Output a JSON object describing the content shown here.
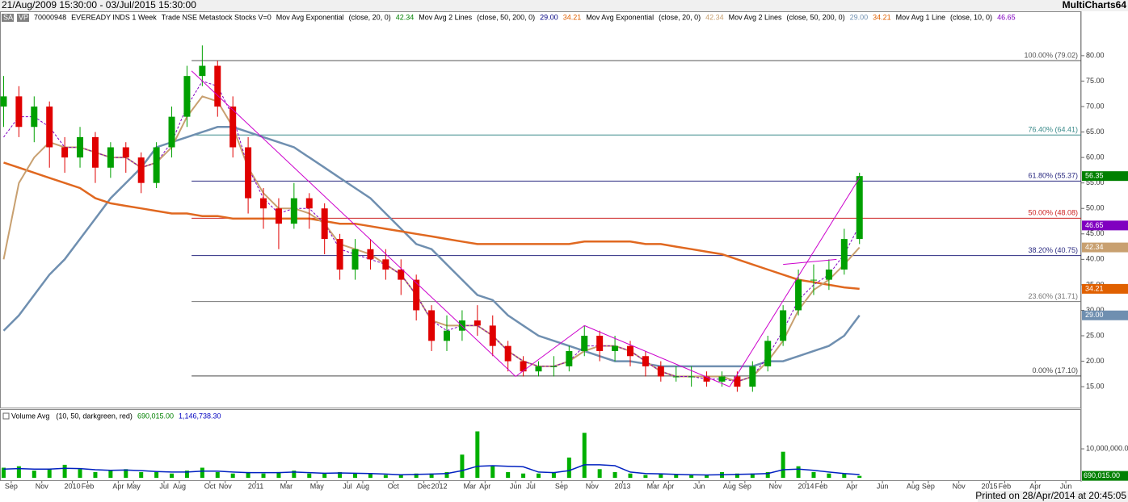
{
  "header": {
    "range": "21/Aug/2009 15:30:00 - 03/Jul/2015 15:30:00",
    "app": "MultiCharts64"
  },
  "status_line": [
    {
      "text": "SA",
      "color": "#ffffff"
    },
    {
      "text": "VP",
      "color": "#ffffff"
    },
    {
      "text": "70000948",
      "color": "#000000"
    },
    {
      "text": "EVEREADY INDS 1 Week",
      "color": "#000000"
    },
    {
      "text": "Trade NSE Metastock Stocks V=0",
      "color": "#000000"
    },
    {
      "text": "Mov Avg Exponential",
      "color": "#000000"
    },
    {
      "text": "(close, 20, 0)",
      "color": "#000000"
    },
    {
      "text": "42.34",
      "color": "#008000"
    },
    {
      "text": "Mov Avg 2 Lines",
      "color": "#000000"
    },
    {
      "text": "(close, 50, 200, 0)",
      "color": "#000000"
    },
    {
      "text": "29.00",
      "color": "#000080"
    },
    {
      "text": "34.21",
      "color": "#e06000"
    },
    {
      "text": "Mov Avg Exponential",
      "color": "#000000"
    },
    {
      "text": "(close, 20, 0)",
      "color": "#000000"
    },
    {
      "text": "42.34",
      "color": "#c8a070"
    },
    {
      "text": "Mov Avg 2 Lines",
      "color": "#000000"
    },
    {
      "text": "(close, 50, 200, 0)",
      "color": "#000000"
    },
    {
      "text": "29.00",
      "color": "#6f8fb0"
    },
    {
      "text": "34.21",
      "color": "#e06000"
    },
    {
      "text": "Mov Avg 1 Line",
      "color": "#000000"
    },
    {
      "text": "(close, 10, 0)",
      "color": "#000000"
    },
    {
      "text": "46.65",
      "color": "#8000c0"
    }
  ],
  "chart_data": [
    {
      "type": "candlestick",
      "up_color": "#00a000",
      "down_color": "#e00000",
      "x": [
        0.5,
        1.5,
        2.5,
        3.5,
        4.5,
        5.5,
        6.5,
        7.5,
        8.5,
        9.5,
        10.5,
        11.5,
        12.5,
        13.5,
        14.5,
        15.5,
        16.5,
        17.5,
        18.5,
        19.5,
        20.5,
        21.5,
        22.5,
        23.5,
        24.5,
        25.5,
        26.5,
        27.5,
        28.5,
        29.5,
        30.5,
        31.5,
        32.5,
        33.5,
        34.5,
        35.5,
        36.5,
        37.5,
        38.5,
        39.5,
        40.5,
        41.5,
        42.5,
        43.5,
        44.5,
        45.5,
        46.5,
        47.5,
        48.5,
        49.5,
        50.5,
        51.5,
        52.5,
        53.5,
        54.5,
        55.5,
        56.5
      ],
      "open": [
        70,
        72,
        66,
        70,
        62,
        60,
        64,
        58,
        62,
        60,
        55,
        62,
        68,
        76,
        78,
        70,
        62,
        52,
        50,
        47,
        52,
        50,
        44,
        38,
        42,
        40,
        38,
        36,
        30,
        24,
        26,
        28,
        27,
        23,
        20,
        18,
        19,
        19,
        22,
        25,
        22,
        23,
        21,
        19,
        17,
        17,
        17,
        16,
        17,
        15,
        19,
        24,
        30,
        36,
        36,
        38,
        44
      ],
      "high": [
        76,
        74,
        72,
        71,
        64,
        66,
        65,
        63,
        63,
        61,
        63,
        70,
        78,
        82,
        79,
        72,
        64,
        54,
        52,
        55,
        53,
        51,
        45,
        44,
        44,
        42,
        40,
        37,
        31,
        29,
        30,
        31,
        29,
        24,
        21,
        20,
        21,
        23,
        27,
        26,
        25,
        24,
        22,
        20,
        19,
        19,
        18,
        18,
        18,
        20,
        25,
        31,
        38,
        39,
        40,
        46,
        57
      ],
      "low": [
        66,
        64,
        63,
        58,
        57,
        58,
        55,
        56,
        57,
        53,
        54,
        60,
        66,
        74,
        68,
        60,
        49,
        46,
        42,
        46,
        46,
        41,
        36,
        36,
        38,
        36,
        33,
        28,
        22,
        22,
        24,
        25,
        21,
        18,
        17,
        17,
        17,
        18,
        21,
        20,
        20,
        19,
        17,
        16,
        16,
        15,
        15,
        15,
        14,
        14,
        18,
        23,
        29,
        33,
        34,
        37,
        43
      ],
      "close": [
        72,
        66,
        70,
        62,
        60,
        64,
        58,
        62,
        60,
        55,
        62,
        68,
        76,
        78,
        70,
        62,
        52,
        50,
        47,
        52,
        50,
        44,
        38,
        42,
        40,
        38,
        36,
        30,
        24,
        26,
        28,
        27,
        23,
        20,
        18,
        19,
        19,
        22,
        25,
        22,
        23,
        21,
        19,
        17,
        17,
        17,
        16,
        17,
        15,
        19,
        24,
        30,
        36,
        36,
        38,
        44,
        56.35
      ],
      "series": [
        {
          "color": "#6f8fb0",
          "width": 2.5,
          "values": [
            26,
            29,
            33,
            37,
            40,
            44,
            48,
            52,
            55,
            58,
            62,
            63,
            64,
            65,
            66,
            66,
            65,
            64,
            63,
            62,
            60,
            58,
            56,
            54,
            52,
            49,
            46,
            43,
            42,
            39,
            36,
            33,
            32,
            29,
            27,
            25,
            24,
            23,
            22,
            21,
            20,
            20,
            19.5,
            19,
            19,
            19,
            19,
            19,
            19,
            19,
            20,
            20,
            21,
            22,
            23,
            25,
            29
          ]
        },
        {
          "color": "#e06820",
          "width": 2.5,
          "values": [
            59,
            58,
            57,
            56,
            55,
            54,
            52,
            51,
            50.5,
            50,
            49.5,
            49,
            49,
            48.5,
            48.5,
            48,
            48,
            48,
            48,
            48,
            48,
            47.5,
            47,
            47,
            46.5,
            46,
            45.5,
            45,
            44.5,
            44,
            43.5,
            43,
            43,
            43,
            43,
            43,
            43,
            43,
            43.5,
            43.5,
            43.5,
            43.5,
            43,
            43,
            42.5,
            42,
            41.5,
            41,
            40,
            39,
            38,
            37,
            36,
            35.5,
            35,
            34.5,
            34.21
          ]
        },
        {
          "color": "#c8a070",
          "width": 2,
          "values": [
            40,
            55,
            60,
            63,
            62,
            62,
            61,
            60,
            60,
            58,
            59,
            62,
            68,
            72,
            71,
            66,
            58,
            53,
            50,
            50,
            49,
            47,
            43,
            42,
            41,
            39,
            37,
            33,
            28,
            27,
            27,
            27,
            25,
            22,
            20,
            19,
            19,
            20,
            22,
            23,
            23,
            22,
            20,
            18,
            17,
            17,
            17,
            17,
            16,
            17,
            20,
            24,
            30,
            34,
            36,
            39,
            42.34
          ]
        },
        {
          "color": "#8000c0",
          "width": 1,
          "dash": "3,2",
          "values": [
            64,
            68,
            68,
            66,
            62,
            62,
            61,
            60,
            60,
            58,
            59,
            63,
            70,
            75,
            74,
            68,
            58,
            52,
            49,
            50,
            50,
            47,
            42,
            41,
            40,
            39,
            37,
            33,
            28,
            26,
            27,
            27,
            25,
            22,
            20,
            19,
            19,
            20,
            23,
            23,
            23,
            22,
            20,
            18,
            17,
            17,
            16.5,
            16.5,
            16,
            17,
            21,
            26,
            32,
            35,
            37,
            41,
            46.65
          ]
        }
      ],
      "fib_levels": [
        {
          "value": 79.02,
          "label": "100.00% (79.02)",
          "color": "#555555"
        },
        {
          "value": 64.41,
          "label": "76.40% (64.41)",
          "color": "#3a8a8a"
        },
        {
          "value": 55.37,
          "label": "61.80% (55.37)",
          "color": "#2a2a80"
        },
        {
          "value": 48.08,
          "label": "50.00% (48.08)",
          "color": "#cc2020"
        },
        {
          "value": 40.75,
          "label": "38.20% (40.75)",
          "color": "#2a2a80"
        },
        {
          "value": 31.71,
          "label": "23.60% (31.71)",
          "color": "#777777"
        },
        {
          "value": 17.1,
          "label": "0.00% (17.10)",
          "color": "#444444"
        }
      ],
      "fib_start": 12.8,
      "trendlines": [
        [
          12.8,
          77,
          34,
          17
        ],
        [
          34,
          17,
          38.5,
          27
        ],
        [
          38.5,
          27,
          48,
          15
        ],
        [
          48,
          15,
          56.5,
          56
        ],
        [
          51.5,
          39,
          55,
          40
        ]
      ],
      "trend_color": "#cc00cc",
      "price_tags": [
        {
          "value": 56.35,
          "label": "56.35",
          "color": "#008000"
        },
        {
          "value": 46.65,
          "label": "46.65",
          "color": "#8000c0"
        },
        {
          "value": 42.34,
          "label": "42.34",
          "color": "#c8a070"
        },
        {
          "value": 34.21,
          "label": "34.21",
          "color": "#e06000"
        },
        {
          "value": 29,
          "label": "29.00",
          "color": "#6f8fb0"
        }
      ],
      "xlim": [
        0,
        71
      ],
      "ylim": [
        10.9,
        88.7
      ],
      "yticks": [
        {
          "value": 15,
          "label": "15.00"
        },
        {
          "value": 20,
          "label": "20.00"
        },
        {
          "value": 25,
          "label": "25.00"
        },
        {
          "value": 30,
          "label": "30.00"
        },
        {
          "value": 35,
          "label": "35.00"
        },
        {
          "value": 40,
          "label": "40.00"
        },
        {
          "value": 45,
          "label": "45.00"
        },
        {
          "value": 50,
          "label": "50.00"
        },
        {
          "value": 55,
          "label": "55.00"
        },
        {
          "value": 60,
          "label": "60.00"
        },
        {
          "value": 65,
          "label": "65.00"
        },
        {
          "value": 70,
          "label": "70.00"
        },
        {
          "value": 75,
          "label": "75.00"
        },
        {
          "value": 80,
          "label": "80.00"
        }
      ],
      "xticks": [
        {
          "value": 1,
          "label": "Sep"
        },
        {
          "value": 3,
          "label": "Nov"
        },
        {
          "value": 5,
          "label": "2010"
        },
        {
          "value": 6,
          "label": "Feb"
        },
        {
          "value": 8,
          "label": "Apr"
        },
        {
          "value": 9,
          "label": "May"
        },
        {
          "value": 11,
          "label": "Jul"
        },
        {
          "value": 12,
          "label": "Aug"
        },
        {
          "value": 14,
          "label": "Oct"
        },
        {
          "value": 15,
          "label": "Nov"
        },
        {
          "value": 17,
          "label": "2011"
        },
        {
          "value": 19,
          "label": "Mar"
        },
        {
          "value": 21,
          "label": "May"
        },
        {
          "value": 23,
          "label": "Jul"
        },
        {
          "value": 24,
          "label": "Aug"
        },
        {
          "value": 26,
          "label": "Oct"
        },
        {
          "value": 28,
          "label": "Dec"
        },
        {
          "value": 29,
          "label": "2012"
        },
        {
          "value": 31,
          "label": "Mar"
        },
        {
          "value": 32,
          "label": "Apr"
        },
        {
          "value": 34,
          "label": "Jun"
        },
        {
          "value": 35,
          "label": "Jul"
        },
        {
          "value": 37,
          "label": "Sep"
        },
        {
          "value": 39,
          "label": "Nov"
        },
        {
          "value": 41,
          "label": "2013"
        },
        {
          "value": 43,
          "label": "Mar"
        },
        {
          "value": 44,
          "label": "Apr"
        },
        {
          "value": 46,
          "label": "Jun"
        },
        {
          "value": 48,
          "label": "Aug"
        },
        {
          "value": 49,
          "label": "Sep"
        },
        {
          "value": 51,
          "label": "Nov"
        },
        {
          "value": 53,
          "label": "2014"
        },
        {
          "value": 54,
          "label": "Feb"
        },
        {
          "value": 56,
          "label": "Apr"
        },
        {
          "value": 58,
          "label": "Jun"
        },
        {
          "value": 60,
          "label": "Aug"
        },
        {
          "value": 61,
          "label": "Sep"
        },
        {
          "value": 63,
          "label": "Nov"
        },
        {
          "value": 65,
          "label": "2015"
        },
        {
          "value": 66,
          "label": "Feb"
        },
        {
          "value": 68,
          "label": "Apr"
        },
        {
          "value": 70,
          "label": "Jun"
        }
      ]
    },
    {
      "type": "bar",
      "title": "Volume Avg",
      "params": "(10, 50, darkgreen, red)",
      "last_values": [
        {
          "value": 690015,
          "label": "690,015.00",
          "color": "#008000"
        },
        {
          "value": 1146738.3,
          "label": "1,146,738.30",
          "color": "#0000c0"
        }
      ],
      "color": "#00b000",
      "avg_color": "#0020c0",
      "values": [
        3500000,
        4000000,
        2500000,
        3000000,
        4500000,
        3000000,
        2000000,
        2500000,
        3000000,
        2000000,
        2000000,
        1500000,
        2500000,
        3500000,
        2000000,
        1500000,
        2000000,
        1500000,
        2000000,
        2500000,
        1500000,
        1500000,
        2000000,
        1500000,
        1500000,
        1000000,
        1000000,
        1500000,
        1500000,
        2000000,
        8000000,
        16000000,
        4000000,
        2000000,
        1500000,
        1500000,
        2000000,
        7000000,
        15500000,
        3000000,
        2000000,
        1500000,
        1000000,
        1500000,
        1000000,
        1000000,
        1000000,
        2000000,
        1500000,
        1500000,
        2000000,
        9000000,
        4000000,
        2000000,
        1500000,
        1500000,
        690015
      ],
      "avg": [
        3000000,
        3200000,
        3000000,
        3000000,
        3300000,
        3200000,
        2800000,
        2600000,
        2700000,
        2500000,
        2200000,
        2000000,
        2000000,
        2300000,
        2300000,
        2000000,
        1800000,
        1800000,
        1800000,
        2000000,
        1800000,
        1600000,
        1700000,
        1600000,
        1500000,
        1300000,
        1100000,
        1200000,
        1300000,
        1500000,
        2500000,
        4000000,
        4200000,
        4000000,
        3800000,
        2000000,
        1800000,
        2500000,
        4500000,
        4500000,
        4200000,
        2000000,
        1500000,
        1400000,
        1200000,
        1100000,
        1000000,
        1100000,
        1200000,
        1300000,
        1500000,
        2800000,
        3000000,
        2600000,
        2000000,
        1500000,
        1146738.3
      ],
      "ylim": [
        -800000,
        22800000
      ],
      "yticks": [
        {
          "value": 10000000,
          "label": "10,000,000.00"
        }
      ]
    }
  ],
  "footer": "Printed on 28/Apr/2014 at 20:45:05"
}
